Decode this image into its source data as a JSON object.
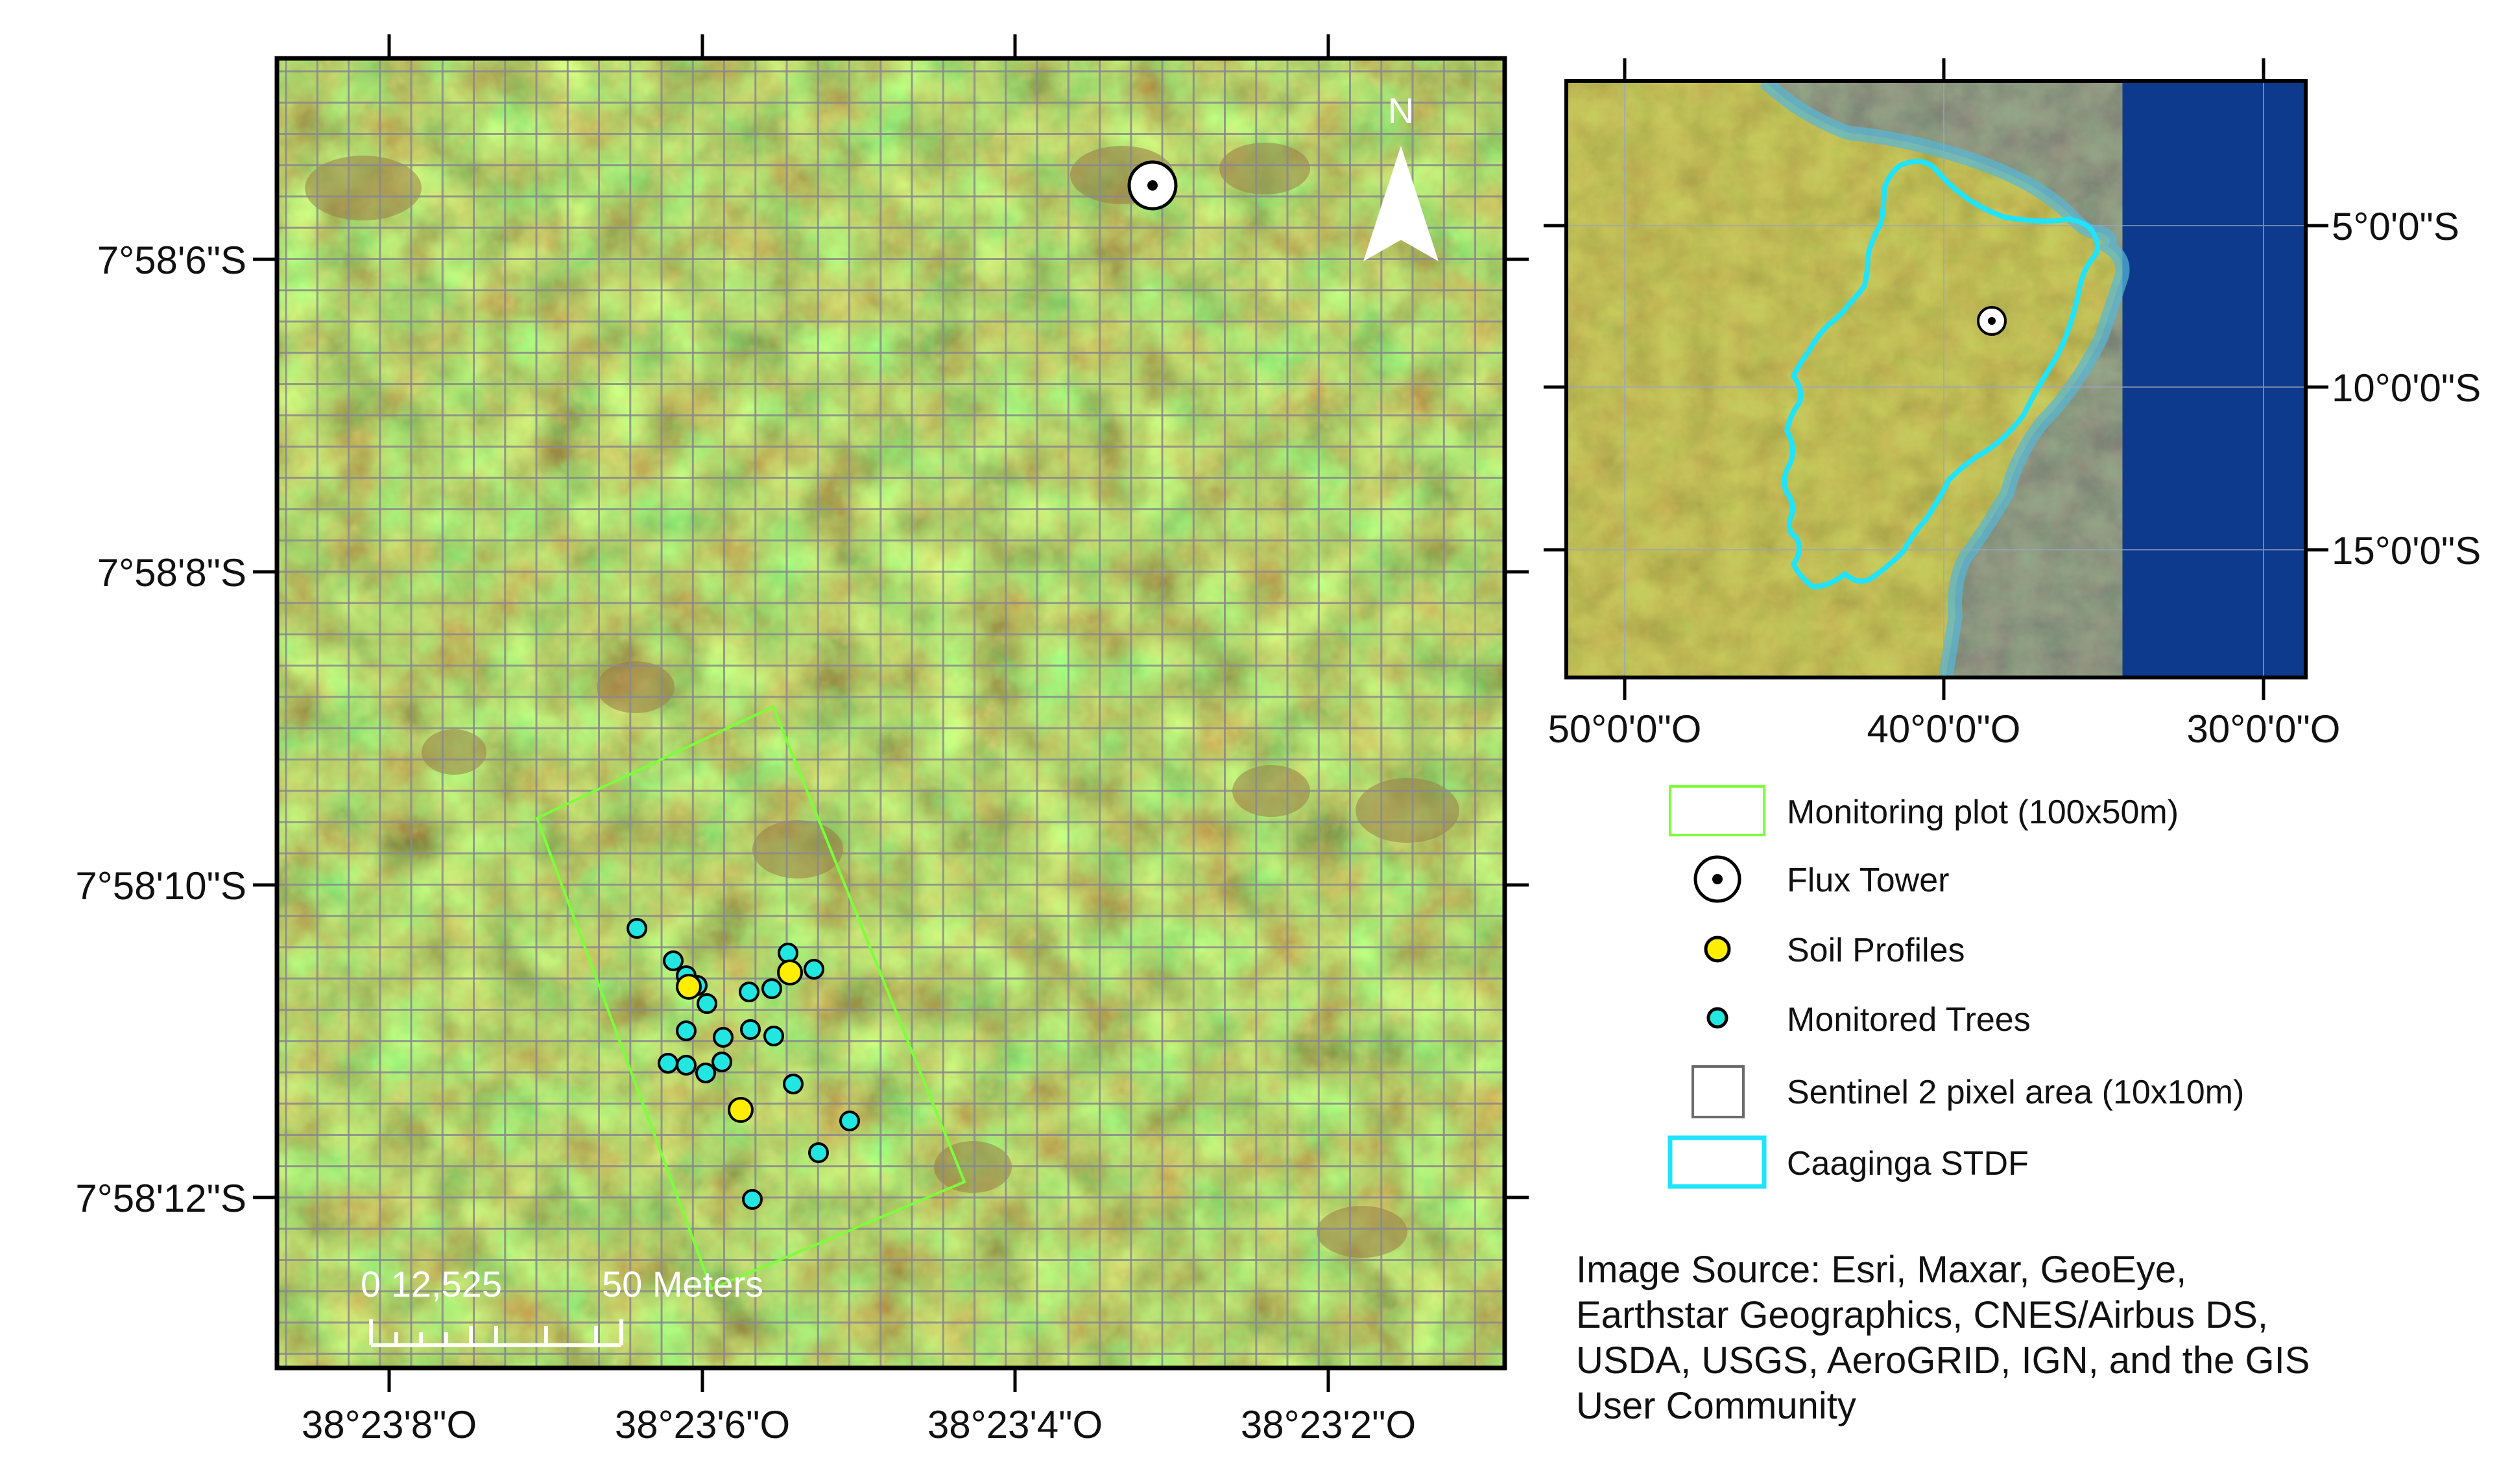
{
  "main_map": {
    "north_arrow_label": "N",
    "lat_labels": [
      "7°58'6\"S",
      "7°58'8\"S",
      "7°58'10\"S",
      "7°58'12\"S"
    ],
    "lon_labels": [
      "38°23'8\"O",
      "38°23'6\"O",
      "38°23'4\"O",
      "38°23'2\"O"
    ],
    "scale_bar": {
      "left_label": "0 12,525",
      "right_label": "50 Meters"
    }
  },
  "inset_map": {
    "lat_labels": [
      "5°0'0\"S",
      "10°0'0\"S",
      "15°0'0\"S"
    ],
    "lon_labels": [
      "50°0'0\"O",
      "40°0'0\"O",
      "30°0'0\"O"
    ]
  },
  "legend": {
    "items": [
      {
        "label": "Monitoring plot (100x50m)",
        "symbol": "plot-outline",
        "color": "#7cff3a"
      },
      {
        "label": "Flux Tower",
        "symbol": "flux-tower",
        "color": "#000000"
      },
      {
        "label": "Soil Profiles",
        "symbol": "circle",
        "color": "#ffee00"
      },
      {
        "label": "Monitored Trees",
        "symbol": "circle",
        "color": "#22e6e0"
      },
      {
        "label": "Sentinel 2 pixel area (10x10m)",
        "symbol": "square-outline",
        "color": "#6a6a6a"
      },
      {
        "label": "Caaginga STDF",
        "symbol": "boundary-outline",
        "color": "#1fe3ff"
      }
    ]
  },
  "source": {
    "lines": [
      "Image Source: Esri, Maxar, GeoEye,",
      "Earthstar Geographics, CNES/Airbus DS,",
      "USDA, USGS, AeroGRID, IGN, and the GIS",
      "User Community"
    ]
  }
}
